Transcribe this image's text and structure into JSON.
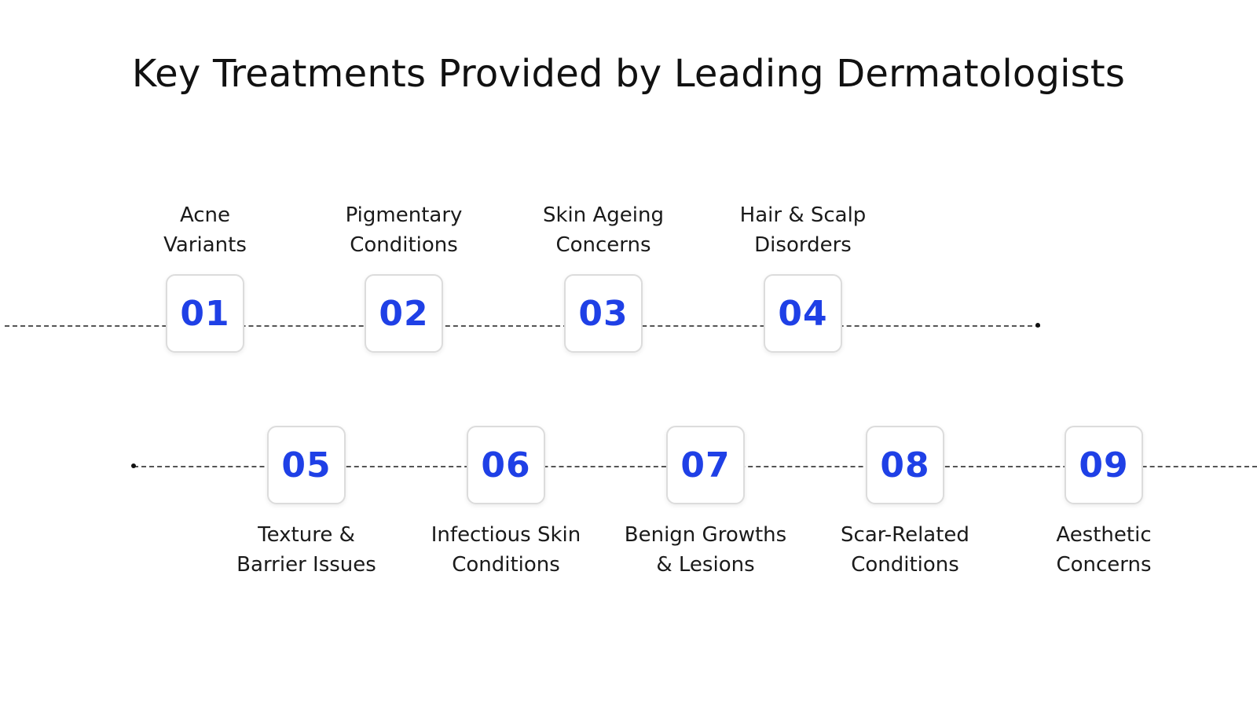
{
  "title": "Key Treatments Provided by Leading Dermatologists",
  "colors": {
    "accent": "#1f40e6",
    "box_border": "#dcdcdc",
    "line": "#555555"
  },
  "steps": [
    {
      "number": "01",
      "label_lines": [
        "Acne",
        "Variants"
      ]
    },
    {
      "number": "02",
      "label_lines": [
        "Pigmentary",
        "Conditions"
      ]
    },
    {
      "number": "03",
      "label_lines": [
        "Skin Ageing",
        "Concerns"
      ]
    },
    {
      "number": "04",
      "label_lines": [
        "Hair & Scalp",
        "Disorders"
      ]
    },
    {
      "number": "05",
      "label_lines": [
        "Texture &",
        "Barrier Issues"
      ]
    },
    {
      "number": "06",
      "label_lines": [
        "Infectious Skin",
        "Conditions"
      ]
    },
    {
      "number": "07",
      "label_lines": [
        "Benign Growths",
        "& Lesions"
      ]
    },
    {
      "number": "08",
      "label_lines": [
        "Scar-Related",
        "Conditions"
      ]
    },
    {
      "number": "09",
      "label_lines": [
        "Aesthetic",
        "Concerns"
      ]
    }
  ]
}
